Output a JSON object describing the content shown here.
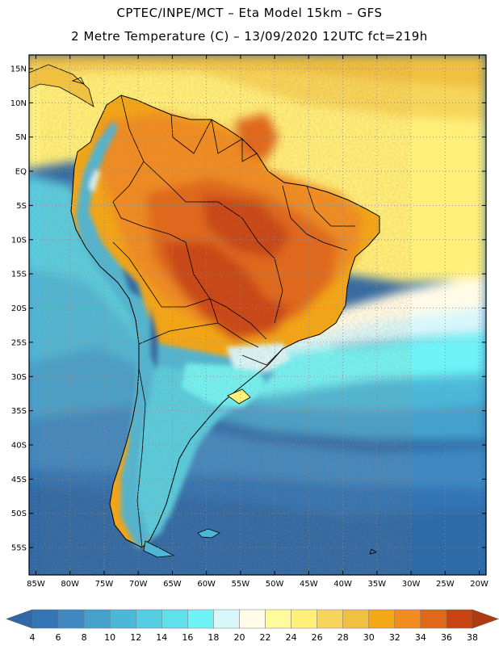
{
  "title_line1": "CPTEC/INPE/MCT –  Eta Model 15km – GFS",
  "title_line2": "2 Metre Temperature (C) – 13/09/2020 12UTC fct=219h",
  "map": {
    "region": "South America",
    "lon_range": [
      -86,
      -19
    ],
    "lat_range": [
      -59,
      17
    ],
    "lat_ticks": [
      {
        "value": 15,
        "label": "15N"
      },
      {
        "value": 10,
        "label": "10N"
      },
      {
        "value": 5,
        "label": "5N"
      },
      {
        "value": 0,
        "label": "EQ"
      },
      {
        "value": -5,
        "label": "5S"
      },
      {
        "value": -10,
        "label": "10S"
      },
      {
        "value": -15,
        "label": "15S"
      },
      {
        "value": -20,
        "label": "20S"
      },
      {
        "value": -25,
        "label": "25S"
      },
      {
        "value": -30,
        "label": "30S"
      },
      {
        "value": -35,
        "label": "35S"
      },
      {
        "value": -40,
        "label": "40S"
      },
      {
        "value": -45,
        "label": "45S"
      },
      {
        "value": -50,
        "label": "50S"
      },
      {
        "value": -55,
        "label": "55S"
      }
    ],
    "lon_ticks": [
      {
        "value": -85,
        "label": "85W"
      },
      {
        "value": -80,
        "label": "80W"
      },
      {
        "value": -75,
        "label": "75W"
      },
      {
        "value": -70,
        "label": "70W"
      },
      {
        "value": -65,
        "label": "65W"
      },
      {
        "value": -60,
        "label": "60W"
      },
      {
        "value": -55,
        "label": "55W"
      },
      {
        "value": -50,
        "label": "50W"
      },
      {
        "value": -45,
        "label": "45W"
      },
      {
        "value": -40,
        "label": "40W"
      },
      {
        "value": -35,
        "label": "35W"
      },
      {
        "value": -30,
        "label": "30W"
      },
      {
        "value": -25,
        "label": "25W"
      },
      {
        "value": -20,
        "label": "20W"
      }
    ]
  },
  "colorbar": {
    "labels": [
      "4",
      "6",
      "8",
      "10",
      "12",
      "14",
      "16",
      "18",
      "20",
      "22",
      "24",
      "26",
      "28",
      "30",
      "32",
      "34",
      "36",
      "38"
    ],
    "colors": [
      "#3375b5",
      "#3f88c1",
      "#45a0cc",
      "#4db7d8",
      "#55cde2",
      "#5fe0ea",
      "#6ff3f6",
      "#d8f7fb",
      "#fffbe6",
      "#fffa9c",
      "#fff07a",
      "#f7d55a",
      "#f0c040",
      "#f4a816",
      "#f08c20",
      "#e0681a",
      "#c84414"
    ],
    "under_color": "#2f68a8",
    "over_color": "#b03a10"
  },
  "colors": {
    "ocean_deep": "#2e6aa8",
    "ocean_mid": "#3f88c1",
    "ocean_light": "#4db7d8",
    "ocean_cyan": "#5fe0ea",
    "warm_sea": "#fff07a",
    "land_hot": "#c84414",
    "land_warm": "#f08c20",
    "andes_cold": "#4db7d8"
  }
}
